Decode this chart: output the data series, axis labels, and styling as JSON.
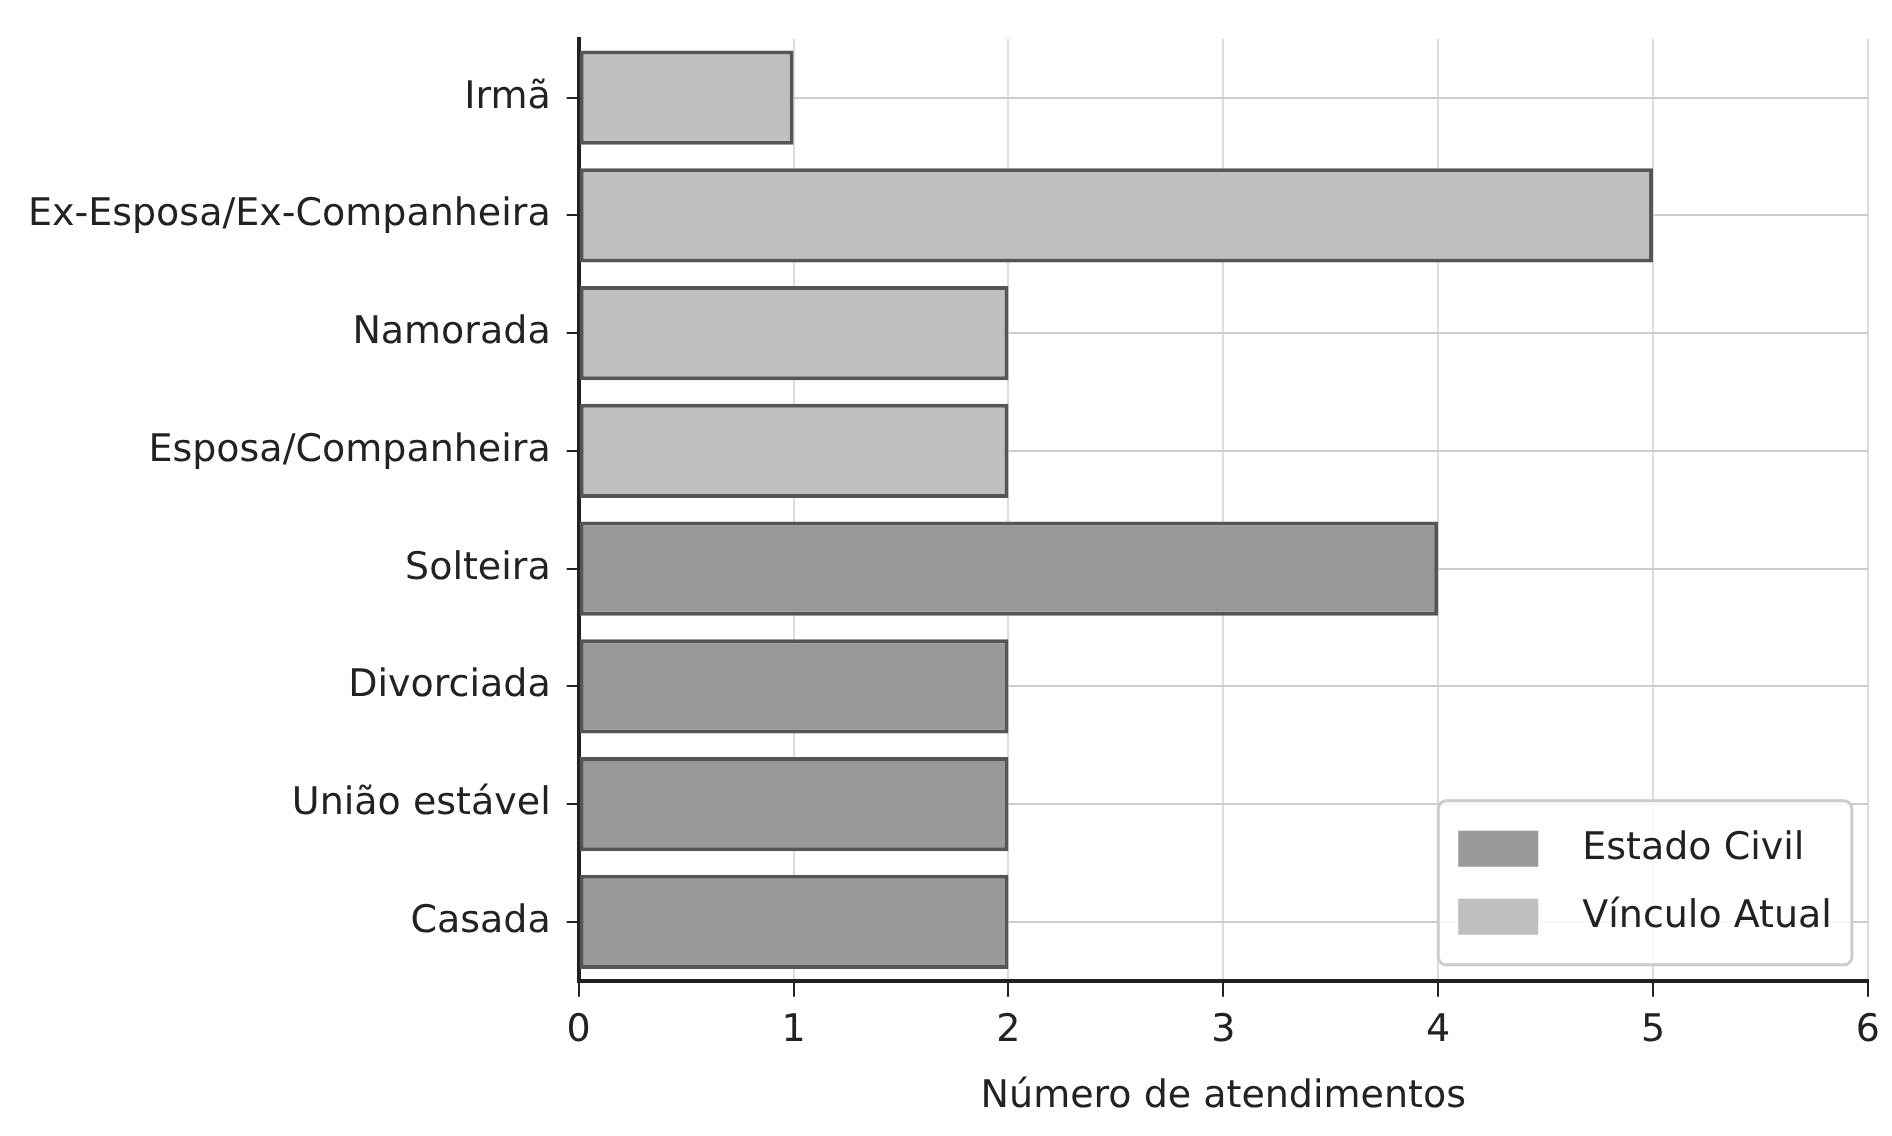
{
  "chart_data": {
    "type": "bar",
    "orientation": "horizontal",
    "stacked": true,
    "xlabel": "Número de atendimentos",
    "categories": [
      "Irmã",
      "Ex-Esposa/Ex-Companheira",
      "Namorada",
      "Esposa/Companheira",
      "Solteira",
      "Divorciada",
      "União estável",
      "Casada"
    ],
    "series": [
      {
        "name": "Estado Civil",
        "color": "#999999",
        "values": [
          null,
          null,
          null,
          null,
          4,
          2,
          2,
          2
        ]
      },
      {
        "name": "Vínculo Atual",
        "color": "#bfbfbf",
        "values": [
          1,
          5,
          2,
          2,
          null,
          null,
          null,
          null
        ]
      }
    ],
    "xlim": [
      0,
      6
    ],
    "xticks": [
      0,
      1,
      2,
      3,
      4,
      5,
      6
    ],
    "grid": true,
    "legend": "bottom right"
  }
}
